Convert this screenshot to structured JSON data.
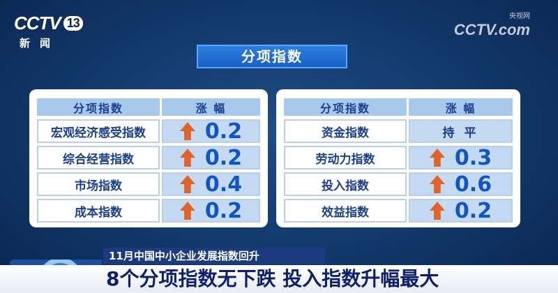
{
  "logo": {
    "brand": "CCTV",
    "channel": "13",
    "name": "新闻"
  },
  "watermark": {
    "brand": "CCTV.com",
    "sub": "央视网"
  },
  "title": "分项指数",
  "tables": [
    {
      "headers": [
        "分项指数",
        "涨 幅"
      ],
      "rows": [
        {
          "name": "宏观经济感受指数",
          "trend": "up",
          "value": "0.2"
        },
        {
          "name": "综合经营指数",
          "trend": "up",
          "value": "0.2"
        },
        {
          "name": "市场指数",
          "trend": "up",
          "value": "0.4"
        },
        {
          "name": "成本指数",
          "trend": "up",
          "value": "0.2"
        }
      ]
    },
    {
      "headers": [
        "分项指数",
        "涨 幅"
      ],
      "rows": [
        {
          "name": "资金指数",
          "trend": "flat",
          "value": "持 平"
        },
        {
          "name": "劳动力指数",
          "trend": "up",
          "value": "0.3"
        },
        {
          "name": "投入指数",
          "trend": "up",
          "value": "0.6"
        },
        {
          "name": "效益指数",
          "trend": "up",
          "value": "0.2"
        }
      ]
    }
  ],
  "colors": {
    "up_arrow": "#e0632a",
    "value_text": "#1155c4",
    "background": "#123a6c"
  },
  "caption": {
    "kicker": "11月中国中小企业发展指数回升",
    "headline": "8个分项指数无下跌 投入指数升幅最大"
  }
}
